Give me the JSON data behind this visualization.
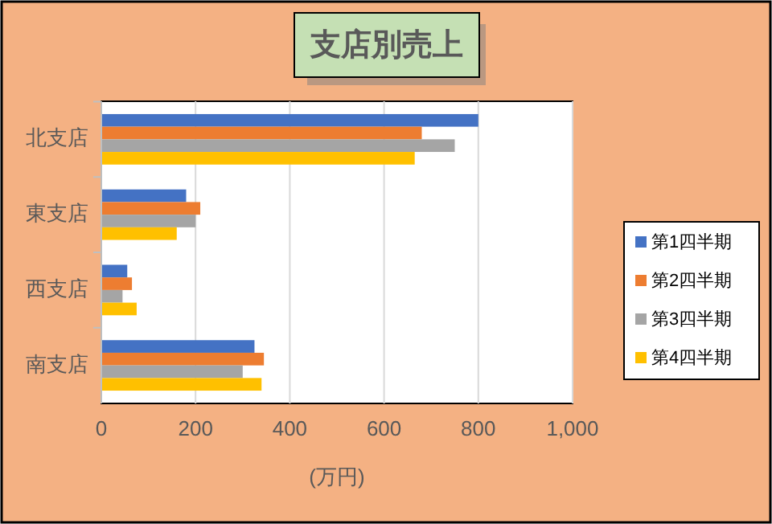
{
  "chart_data": {
    "type": "bar",
    "orientation": "horizontal",
    "title": "支店別売上",
    "xlabel": "(万円)",
    "categories": [
      "北支店",
      "東支店",
      "西支店",
      "南支店"
    ],
    "series": [
      {
        "name": "第1四半期",
        "color": "#4472c4",
        "values": [
          800,
          180,
          55,
          325
        ]
      },
      {
        "name": "第2四半期",
        "color": "#ed7d31",
        "values": [
          680,
          210,
          65,
          345
        ]
      },
      {
        "name": "第3四半期",
        "color": "#a5a5a5",
        "values": [
          750,
          200,
          45,
          300
        ]
      },
      {
        "name": "第4四半期",
        "color": "#ffc000",
        "values": [
          665,
          160,
          75,
          340
        ]
      }
    ],
    "xlim": [
      0,
      1000
    ],
    "xticks": [
      0,
      200,
      400,
      600,
      800,
      {
        "value": 1000,
        "label": "1,000"
      }
    ],
    "grid": "x",
    "legend": "right"
  }
}
